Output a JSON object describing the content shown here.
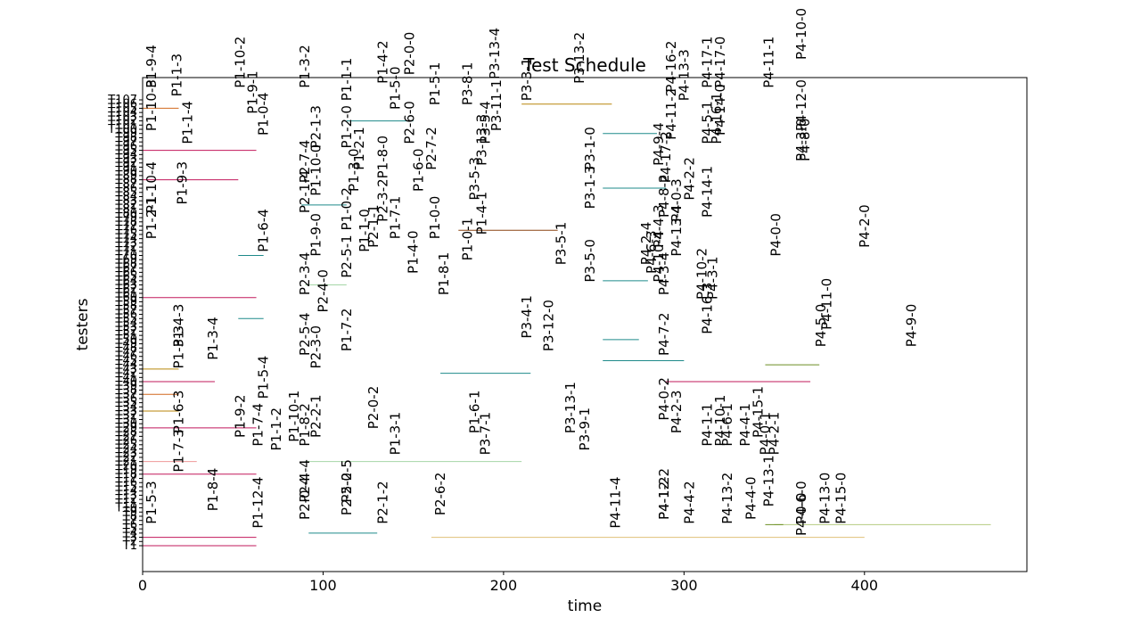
{
  "chart_data": {
    "type": "gantt",
    "title": "Test Schedule",
    "xlabel": "time",
    "ylabel": "testers",
    "xlim": [
      0,
      490
    ],
    "x_ticks": [
      0,
      100,
      200,
      300,
      400
    ],
    "y_tick_labels": [
      "T1",
      "T2",
      "T3",
      "T4",
      "T5",
      "T6",
      "T7",
      "T8",
      "T9",
      "T10",
      "T11",
      "T12",
      "T13",
      "T14",
      "T15",
      "T16",
      "T17",
      "T18",
      "T19",
      "T20",
      "T21",
      "T22",
      "T23",
      "T24",
      "T25",
      "T26",
      "T27",
      "T28",
      "T29",
      "T30",
      "T31",
      "T32",
      "T33",
      "T34",
      "T35",
      "T36",
      "T37",
      "T38",
      "T39",
      "T40",
      "T41",
      "T42",
      "T43",
      "T44",
      "T45",
      "T46",
      "T47",
      "T48",
      "T49",
      "T50",
      "T51",
      "T52",
      "T53",
      "T54",
      "T55",
      "T56",
      "T57",
      "T58",
      "T59",
      "T60",
      "T61",
      "T62",
      "T63",
      "T64",
      "T65",
      "T66",
      "T67",
      "T68",
      "T69",
      "T70",
      "T71",
      "T72",
      "T73",
      "T74",
      "T75",
      "T76",
      "T77",
      "T78",
      "T79",
      "T80",
      "T81",
      "T82",
      "T83",
      "T84",
      "T85",
      "T86",
      "T87",
      "T88",
      "T89",
      "T90",
      "T91",
      "T92",
      "T93",
      "T94",
      "T95",
      "T96",
      "T97",
      "T98",
      "T99",
      "T100",
      "T101",
      "T102",
      "T103",
      "T104",
      "T105",
      "T106",
      "T107"
    ],
    "task_labels": [
      {
        "label": "P1-9-4",
        "time": 5,
        "row": 107
      },
      {
        "label": "P1-1-3",
        "time": 19,
        "row": 105
      },
      {
        "label": "P1-10-3",
        "time": 5,
        "row": 97
      },
      {
        "label": "P1-1-4",
        "time": 25,
        "row": 94
      },
      {
        "label": "P1-9-3",
        "time": 22,
        "row": 80
      },
      {
        "label": "P1-10-4",
        "time": 5,
        "row": 78
      },
      {
        "label": "P1-2-1",
        "time": 5,
        "row": 72
      },
      {
        "label": "P1-4-3",
        "time": 20,
        "row": 47
      },
      {
        "label": "P1-3-4",
        "time": 39,
        "row": 44
      },
      {
        "label": "P1-3-3",
        "time": 20,
        "row": 42
      },
      {
        "label": "P1-6-3",
        "time": 20,
        "row": 27
      },
      {
        "label": "P1-7-3",
        "time": 20,
        "row": 18
      },
      {
        "label": "P1-5-3",
        "time": 5,
        "row": 6
      },
      {
        "label": "P1-8-4",
        "time": 39,
        "row": 9
      },
      {
        "label": "P1-10-2",
        "time": 54,
        "row": 107
      },
      {
        "label": "P1-9-1",
        "time": 61,
        "row": 101
      },
      {
        "label": "P1-0-4",
        "time": 67,
        "row": 96
      },
      {
        "label": "P1-6-4",
        "time": 67,
        "row": 69
      },
      {
        "label": "P1-5-4",
        "time": 67,
        "row": 35
      },
      {
        "label": "P1-9-2",
        "time": 54,
        "row": 26
      },
      {
        "label": "P1-7-4",
        "time": 64,
        "row": 24
      },
      {
        "label": "P1-1-2",
        "time": 74,
        "row": 23
      },
      {
        "label": "P1-12-4",
        "time": 64,
        "row": 5
      },
      {
        "label": "P1-10-1",
        "time": 84,
        "row": 25
      },
      {
        "label": "P1-8-2",
        "time": 90,
        "row": 24
      },
      {
        "label": "P1-3-2",
        "time": 90,
        "row": 107
      },
      {
        "label": "P2-1-3",
        "time": 96,
        "row": 93
      },
      {
        "label": "P2-7-4",
        "time": 90,
        "row": 85
      },
      {
        "label": "P1-10-0",
        "time": 96,
        "row": 82
      },
      {
        "label": "P2-1-4",
        "time": 90,
        "row": 78
      },
      {
        "label": "P1-9-0",
        "time": 96,
        "row": 68
      },
      {
        "label": "P2-3-4",
        "time": 90,
        "row": 59
      },
      {
        "label": "P2-4-0",
        "time": 100,
        "row": 55
      },
      {
        "label": "P2-5-4",
        "time": 90,
        "row": 45
      },
      {
        "label": "P2-3-0",
        "time": 96,
        "row": 42
      },
      {
        "label": "P2-4-4",
        "time": 90,
        "row": 11
      },
      {
        "label": "P2-2-1",
        "time": 96,
        "row": 26
      },
      {
        "label": "P2-0-4",
        "time": 90,
        "row": 7
      },
      {
        "label": "P1-1-1",
        "time": 113,
        "row": 104
      },
      {
        "label": "P1-2-0",
        "time": 113,
        "row": 93
      },
      {
        "label": "P1-2-1",
        "time": 120,
        "row": 88
      },
      {
        "label": "P1-3-0",
        "time": 117,
        "row": 83
      },
      {
        "label": "P1-0-2",
        "time": 113,
        "row": 74
      },
      {
        "label": "P1-1-0",
        "time": 123,
        "row": 69
      },
      {
        "label": "P2-5-1",
        "time": 113,
        "row": 63
      },
      {
        "label": "P1-7-2",
        "time": 113,
        "row": 46
      },
      {
        "label": "P2-0-5",
        "time": 113,
        "row": 11
      },
      {
        "label": "P2-5-2",
        "time": 113,
        "row": 8
      },
      {
        "label": "P1-4-2",
        "time": 133,
        "row": 108
      },
      {
        "label": "P1-5-0",
        "time": 140,
        "row": 102
      },
      {
        "label": "P1-8-0",
        "time": 133,
        "row": 86
      },
      {
        "label": "P2-3-2",
        "time": 133,
        "row": 76
      },
      {
        "label": "P2-1-1",
        "time": 128,
        "row": 70
      },
      {
        "label": "P2-0-2",
        "time": 128,
        "row": 28
      },
      {
        "label": "P1-3-1",
        "time": 140,
        "row": 22
      },
      {
        "label": "P2-1-2",
        "time": 133,
        "row": 6
      },
      {
        "label": "P2-0-0",
        "time": 148,
        "row": 110
      },
      {
        "label": "P2-6-0",
        "time": 148,
        "row": 94
      },
      {
        "label": "P1-7-1",
        "time": 140,
        "row": 72
      },
      {
        "label": "P1-6-0",
        "time": 153,
        "row": 83
      },
      {
        "label": "P2-7-2",
        "time": 160,
        "row": 88
      },
      {
        "label": "P1-4-0",
        "time": 150,
        "row": 64
      },
      {
        "label": "P1-5-1",
        "time": 162,
        "row": 103
      },
      {
        "label": "P1-0-0",
        "time": 162,
        "row": 72
      },
      {
        "label": "P1-8-1",
        "time": 167,
        "row": 59
      },
      {
        "label": "P2-6-2",
        "time": 165,
        "row": 8
      },
      {
        "label": "P1-0-1",
        "time": 180,
        "row": 67
      },
      {
        "label": "P3-8-1",
        "time": 180,
        "row": 103
      },
      {
        "label": "P1-4-1",
        "time": 188,
        "row": 73
      },
      {
        "label": "P1-6-1",
        "time": 184,
        "row": 27
      },
      {
        "label": "P3-7-1",
        "time": 190,
        "row": 22
      },
      {
        "label": "P3-13-4",
        "time": 195,
        "row": 109
      },
      {
        "label": "P3-11-1",
        "time": 196,
        "row": 97
      },
      {
        "label": "P3-5-4",
        "time": 190,
        "row": 94
      },
      {
        "label": "P3-13-3",
        "time": 188,
        "row": 89
      },
      {
        "label": "P3-5-3",
        "time": 184,
        "row": 81
      },
      {
        "label": "P3-4-1",
        "time": 213,
        "row": 49
      },
      {
        "label": "P3-3-1",
        "time": 213,
        "row": 104
      },
      {
        "label": "P3-5-1",
        "time": 232,
        "row": 66
      },
      {
        "label": "P3-5-0",
        "time": 248,
        "row": 62
      },
      {
        "label": "P3-13-1",
        "time": 237,
        "row": 27
      },
      {
        "label": "P3-1-3",
        "time": 248,
        "row": 79
      },
      {
        "label": "P3-1-0",
        "time": 248,
        "row": 88
      },
      {
        "label": "P3-13-2",
        "time": 242,
        "row": 108
      },
      {
        "label": "P3-9-1",
        "time": 245,
        "row": 23
      },
      {
        "label": "P3-12-0",
        "time": 225,
        "row": 46
      },
      {
        "label": "P4-11-4",
        "time": 262,
        "row": 5
      },
      {
        "label": "P4-16-2",
        "time": 293,
        "row": 106
      },
      {
        "label": "P4-13-3",
        "time": 300,
        "row": 104
      },
      {
        "label": "P4-11-2",
        "time": 293,
        "row": 95
      },
      {
        "label": "P4-9-4",
        "time": 286,
        "row": 89
      },
      {
        "label": "P4-17-2",
        "time": 290,
        "row": 85
      },
      {
        "label": "P4-2-2",
        "time": 303,
        "row": 81
      },
      {
        "label": "P4-8-2",
        "time": 289,
        "row": 77
      },
      {
        "label": "P4-0-3",
        "time": 296,
        "row": 76
      },
      {
        "label": "P4-13-4",
        "time": 296,
        "row": 68
      },
      {
        "label": "P4-4-3",
        "time": 286,
        "row": 70
      },
      {
        "label": "P4-2-4",
        "time": 279,
        "row": 66
      },
      {
        "label": "P4-10-4",
        "time": 286,
        "row": 62
      },
      {
        "label": "P4-6-3",
        "time": 282,
        "row": 64
      },
      {
        "label": "P4-3-4",
        "time": 289,
        "row": 59
      },
      {
        "label": "P4-14-1",
        "time": 313,
        "row": 77
      },
      {
        "label": "P4-3-1",
        "time": 316,
        "row": 58
      },
      {
        "label": "P4-10-2",
        "time": 310,
        "row": 58
      },
      {
        "label": "P4-16-3",
        "time": 313,
        "row": 50
      },
      {
        "label": "P4-7-2",
        "time": 289,
        "row": 45
      },
      {
        "label": "P4-0-2",
        "time": 289,
        "row": 30
      },
      {
        "label": "P4-2-3",
        "time": 296,
        "row": 27
      },
      {
        "label": "P4-12-2",
        "time": 289,
        "row": 7
      },
      {
        "label": "P4-1-2",
        "time": 289,
        "row": 7
      },
      {
        "label": "P4-4-2",
        "time": 303,
        "row": 6
      },
      {
        "label": "P4-13-2",
        "time": 324,
        "row": 6
      },
      {
        "label": "P4-6-1",
        "time": 324,
        "row": 24
      },
      {
        "label": "P4-1-1",
        "time": 313,
        "row": 24
      },
      {
        "label": "P4-10-1",
        "time": 320,
        "row": 24
      },
      {
        "label": "P4-4-1",
        "time": 334,
        "row": 24
      },
      {
        "label": "P4-15-1",
        "time": 341,
        "row": 26
      },
      {
        "label": "P4-0-1",
        "time": 345,
        "row": 22
      },
      {
        "label": "P4-2-1",
        "time": 350,
        "row": 22
      },
      {
        "label": "P4-13-1",
        "time": 347,
        "row": 10
      },
      {
        "label": "P4-4-0",
        "time": 337,
        "row": 7
      },
      {
        "label": "P4-17-1",
        "time": 313,
        "row": 107
      },
      {
        "label": "P4-17-0",
        "time": 320,
        "row": 107
      },
      {
        "label": "P4-14-0",
        "time": 320,
        "row": 96
      },
      {
        "label": "P4-5-1",
        "time": 313,
        "row": 94
      },
      {
        "label": "P4-16-1",
        "time": 318,
        "row": 94
      },
      {
        "label": "P4-11-1",
        "time": 347,
        "row": 107
      },
      {
        "label": "P4-12-0",
        "time": 365,
        "row": 97
      },
      {
        "label": "P4-3-0",
        "time": 365,
        "row": 90
      },
      {
        "label": "P4-8-0",
        "time": 367,
        "row": 90
      },
      {
        "label": "P4-0-0",
        "time": 351,
        "row": 68
      },
      {
        "label": "P4-2-0",
        "time": 400,
        "row": 70
      },
      {
        "label": "P4-11-0",
        "time": 379,
        "row": 51
      },
      {
        "label": "P4-5-0",
        "time": 376,
        "row": 47
      },
      {
        "label": "P4-9-0",
        "time": 426,
        "row": 47
      },
      {
        "label": "P4-10-0",
        "time": 365,
        "row": 114
      },
      {
        "label": "P4-6-0",
        "time": 365,
        "row": 6
      },
      {
        "label": "P4-13-0",
        "time": 378,
        "row": 6
      },
      {
        "label": "P4-15-0",
        "time": 387,
        "row": 6
      },
      {
        "label": "P4-0-0",
        "time": 365,
        "row": 3
      }
    ],
    "task_bars": [
      {
        "row": 1,
        "start": 0,
        "end": 63,
        "color": "#c2185b"
      },
      {
        "row": 3,
        "start": 0,
        "end": 63,
        "color": "#c2185b"
      },
      {
        "row": 3,
        "start": 160,
        "end": 400,
        "color": "#e0c078"
      },
      {
        "row": 4,
        "start": 92,
        "end": 130,
        "color": "#1e8a8a"
      },
      {
        "row": 6,
        "start": 350,
        "end": 470,
        "color": "#b5cc80"
      },
      {
        "row": 6,
        "start": 345,
        "end": 355,
        "color": "#6b8e23"
      },
      {
        "row": 18,
        "start": 0,
        "end": 63,
        "color": "#c2185b"
      },
      {
        "row": 21,
        "start": 0,
        "end": 30,
        "color": "#ef9a9a"
      },
      {
        "row": 21,
        "start": 90,
        "end": 210,
        "color": "#a5d6a7"
      },
      {
        "row": 29,
        "start": 0,
        "end": 63,
        "color": "#c2185b"
      },
      {
        "row": 33,
        "start": 0,
        "end": 20,
        "color": "#b8860b"
      },
      {
        "row": 37,
        "start": 0,
        "end": 20,
        "color": "#d2691e"
      },
      {
        "row": 40,
        "start": 0,
        "end": 40,
        "color": "#c2185b"
      },
      {
        "row": 40,
        "start": 290,
        "end": 370,
        "color": "#c2185b"
      },
      {
        "row": 43,
        "start": 0,
        "end": 20,
        "color": "#b8860b"
      },
      {
        "row": 44,
        "start": 345,
        "end": 375,
        "color": "#6b8e23"
      },
      {
        "row": 42,
        "start": 165,
        "end": 215,
        "color": "#1e8a8a"
      },
      {
        "row": 45,
        "start": 255,
        "end": 300,
        "color": "#1e8a8a"
      },
      {
        "row": 55,
        "start": 53,
        "end": 67,
        "color": "#1e8a8a"
      },
      {
        "row": 60,
        "start": 0,
        "end": 63,
        "color": "#c2185b"
      },
      {
        "row": 63,
        "start": 90,
        "end": 113,
        "color": "#a5d6a7"
      },
      {
        "row": 70,
        "start": 53,
        "end": 67,
        "color": "#1e8a8a"
      },
      {
        "row": 76,
        "start": 175,
        "end": 230,
        "color": "#8b4513"
      },
      {
        "row": 82,
        "start": 88,
        "end": 113,
        "color": "#1e8a8a"
      },
      {
        "row": 88,
        "start": 0,
        "end": 53,
        "color": "#c2185b"
      },
      {
        "row": 95,
        "start": 0,
        "end": 63,
        "color": "#c2185b"
      },
      {
        "row": 102,
        "start": 113,
        "end": 150,
        "color": "#1e8a8a"
      },
      {
        "row": 105,
        "start": 0,
        "end": 20,
        "color": "#d2691e"
      },
      {
        "row": 106,
        "start": 210,
        "end": 260,
        "color": "#b8860b"
      },
      {
        "row": 99,
        "start": 255,
        "end": 285,
        "color": "#1e8a8a"
      },
      {
        "row": 86,
        "start": 255,
        "end": 290,
        "color": "#1e8a8a"
      },
      {
        "row": 64,
        "start": 255,
        "end": 280,
        "color": "#1e8a8a"
      },
      {
        "row": 50,
        "start": 255,
        "end": 275,
        "color": "#1e8a8a"
      }
    ]
  }
}
